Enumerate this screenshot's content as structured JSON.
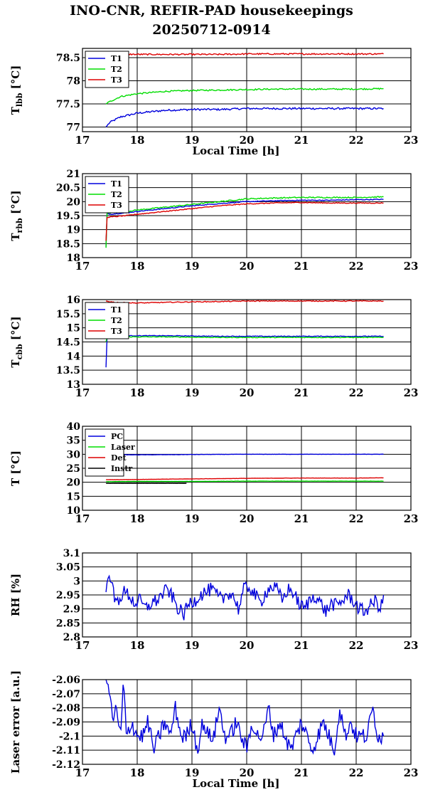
{
  "figure": {
    "title_line1": "INO-CNR, REFIR-PAD housekeepings",
    "title_line2": "20250712-0914"
  },
  "chart_data": [
    {
      "type": "line",
      "ylabel": "T",
      "ylabel_sub": "lbb",
      "ylabel_unit": "[°C]",
      "xlabel": "Local Time [h]",
      "xlim": [
        17,
        23
      ],
      "ylim": [
        76.9,
        78.7
      ],
      "xticks": [
        17,
        18,
        19,
        20,
        21,
        22,
        23
      ],
      "yticks": [
        77,
        77.5,
        78,
        78.5
      ],
      "ytick_labels": [
        "77",
        "77.5",
        "78",
        "78.5"
      ],
      "grid": true,
      "legend": "top-left",
      "series": [
        {
          "name": "T1",
          "color": "#0000dd",
          "x": [
            17.43,
            17.5,
            17.7,
            18.0,
            18.5,
            19.0,
            19.5,
            20.0,
            20.5,
            21.0,
            21.5,
            22.0,
            22.5
          ],
          "values": [
            77.0,
            77.1,
            77.22,
            77.3,
            77.36,
            77.38,
            77.38,
            77.4,
            77.4,
            77.4,
            77.4,
            77.4,
            77.4
          ],
          "noise": 0.02
        },
        {
          "name": "T2",
          "color": "#00dd00",
          "x": [
            17.43,
            17.5,
            17.7,
            18.0,
            18.5,
            19.0,
            19.5,
            20.0,
            20.5,
            21.0,
            21.5,
            22.0,
            22.5
          ],
          "values": [
            77.5,
            77.55,
            77.66,
            77.72,
            77.77,
            77.79,
            77.8,
            77.81,
            77.82,
            77.82,
            77.82,
            77.82,
            77.83
          ],
          "noise": 0.015
        },
        {
          "name": "T3",
          "color": "#dd0000",
          "x": [
            17.43,
            17.6,
            18.0,
            18.5,
            19.0,
            19.5,
            20.0,
            20.5,
            21.0,
            21.5,
            22.0,
            22.5
          ],
          "values": [
            78.6,
            78.58,
            78.57,
            78.57,
            78.57,
            78.57,
            78.58,
            78.58,
            78.58,
            78.58,
            78.58,
            78.58
          ],
          "noise": 0.015
        }
      ]
    },
    {
      "type": "line",
      "ylabel": "T",
      "ylabel_sub": "rbb",
      "ylabel_unit": "[°C]",
      "xlabel": "",
      "xlim": [
        17,
        23
      ],
      "ylim": [
        18,
        21
      ],
      "xticks": [
        17,
        18,
        19,
        20,
        21,
        22,
        23
      ],
      "yticks": [
        18,
        18.5,
        19,
        19.5,
        20,
        20.5,
        21
      ],
      "ytick_labels": [
        "18",
        "18.5",
        "19",
        "19.5",
        "20",
        "20.5",
        "21"
      ],
      "grid": true,
      "legend": "top-left",
      "series": [
        {
          "name": "T1",
          "color": "#0000dd",
          "x": [
            17.43,
            17.45,
            17.5,
            17.8,
            18.0,
            18.5,
            19.0,
            19.5,
            20.0,
            20.5,
            21.0,
            21.5,
            22.0,
            22.5
          ],
          "values": [
            18.4,
            19.6,
            19.55,
            19.6,
            19.65,
            19.75,
            19.85,
            19.93,
            20.0,
            20.03,
            20.05,
            20.05,
            20.07,
            20.08
          ],
          "noise": 0.015
        },
        {
          "name": "T2",
          "color": "#00dd00",
          "x": [
            17.43,
            17.45,
            17.5,
            17.8,
            18.0,
            18.5,
            19.0,
            19.5,
            20.0,
            20.5,
            21.0,
            21.5,
            22.0,
            22.5
          ],
          "values": [
            18.35,
            19.6,
            19.6,
            19.65,
            19.7,
            19.8,
            19.9,
            20.0,
            20.1,
            20.13,
            20.15,
            20.15,
            20.15,
            20.17
          ],
          "noise": 0.02
        },
        {
          "name": "T3",
          "color": "#dd0000",
          "x": [
            17.43,
            17.45,
            17.5,
            17.8,
            18.0,
            18.5,
            19.0,
            19.5,
            20.0,
            20.5,
            21.0,
            21.5,
            22.0,
            22.5
          ],
          "values": [
            18.6,
            19.45,
            19.45,
            19.5,
            19.55,
            19.65,
            19.75,
            19.85,
            19.92,
            19.95,
            19.97,
            19.95,
            19.95,
            19.95
          ],
          "noise": 0.015
        }
      ]
    },
    {
      "type": "line",
      "ylabel": "T",
      "ylabel_sub": "cbb",
      "ylabel_unit": "[°C]",
      "xlabel": "",
      "xlim": [
        17,
        23
      ],
      "ylim": [
        13,
        16
      ],
      "xticks": [
        17,
        18,
        19,
        20,
        21,
        22,
        23
      ],
      "yticks": [
        13,
        13.5,
        14,
        14.5,
        15,
        15.5,
        16
      ],
      "ytick_labels": [
        "13",
        "13.5",
        "14",
        "14.5",
        "15",
        "15.5",
        "16"
      ],
      "grid": true,
      "legend": "top-left",
      "series": [
        {
          "name": "T1",
          "color": "#0000dd",
          "x": [
            17.43,
            17.45,
            17.5,
            18.0,
            18.5,
            19.0,
            19.5,
            20.0,
            20.5,
            21.0,
            21.5,
            22.0,
            22.5
          ],
          "values": [
            13.6,
            14.7,
            14.72,
            14.72,
            14.72,
            14.71,
            14.7,
            14.7,
            14.7,
            14.7,
            14.7,
            14.7,
            14.7
          ],
          "noise": 0.012
        },
        {
          "name": "T2",
          "color": "#00dd00",
          "x": [
            17.43,
            17.45,
            17.5,
            18.0,
            18.5,
            19.0,
            19.5,
            20.0,
            20.5,
            21.0,
            21.5,
            22.0,
            22.5
          ],
          "values": [
            14.5,
            14.68,
            14.68,
            14.68,
            14.68,
            14.67,
            14.66,
            14.66,
            14.66,
            14.66,
            14.66,
            14.66,
            14.66
          ],
          "noise": 0.012
        },
        {
          "name": "T3",
          "color": "#dd0000",
          "x": [
            17.43,
            17.6,
            18.0,
            18.5,
            19.0,
            19.5,
            20.0,
            20.5,
            21.0,
            21.5,
            22.0,
            22.5
          ],
          "values": [
            15.95,
            15.9,
            15.88,
            15.9,
            15.92,
            15.93,
            15.95,
            15.95,
            15.95,
            15.95,
            15.95,
            15.95
          ],
          "noise": 0.015
        }
      ]
    },
    {
      "type": "line",
      "ylabel": "T [°C]",
      "ylabel_sub": "",
      "ylabel_unit": "",
      "xlabel": "",
      "xlim": [
        17,
        23
      ],
      "ylim": [
        10,
        40
      ],
      "xticks": [
        17,
        18,
        19,
        20,
        21,
        22,
        23
      ],
      "yticks": [
        10,
        15,
        20,
        25,
        30,
        35,
        40
      ],
      "ytick_labels": [
        "10",
        "15",
        "20",
        "25",
        "30",
        "35",
        "40"
      ],
      "grid": true,
      "legend": "top-left",
      "series": [
        {
          "name": "PC",
          "color": "#0000dd",
          "x": [
            17.43,
            18.0,
            19.0,
            20.0,
            21.0,
            22.0,
            22.5
          ],
          "values": [
            29.8,
            29.8,
            29.9,
            30.0,
            30.0,
            30.0,
            30.0
          ],
          "noise": 0.05
        },
        {
          "name": "Laser",
          "color": "#00dd00",
          "x": [
            17.43,
            18.0,
            19.0,
            20.0,
            21.0,
            22.0,
            22.5
          ],
          "values": [
            20.2,
            20.3,
            20.3,
            20.4,
            20.4,
            20.4,
            20.4
          ],
          "noise": 0.04
        },
        {
          "name": "Det",
          "color": "#dd0000",
          "x": [
            17.43,
            18.0,
            19.0,
            20.0,
            21.0,
            22.0,
            22.5
          ],
          "values": [
            20.9,
            21.0,
            21.2,
            21.4,
            21.5,
            21.5,
            21.6
          ],
          "noise": 0.04
        },
        {
          "name": "Instr",
          "color": "#000000",
          "x": [
            17.43,
            17.8,
            18.2,
            18.6,
            18.9
          ],
          "values": [
            19.6,
            19.6,
            19.6,
            19.6,
            19.6
          ],
          "noise": 0.02
        }
      ]
    },
    {
      "type": "line",
      "ylabel": "RH [%]",
      "ylabel_sub": "",
      "ylabel_unit": "",
      "xlabel": "",
      "xlim": [
        17,
        23
      ],
      "ylim": [
        2.8,
        3.1
      ],
      "xticks": [
        17,
        18,
        19,
        20,
        21,
        22,
        23
      ],
      "yticks": [
        2.8,
        2.85,
        2.9,
        2.95,
        3.0,
        3.05,
        3.1
      ],
      "ytick_labels": [
        "2.8",
        "2.85",
        "2.9",
        "2.95",
        "3",
        "3.05",
        "3.1"
      ],
      "grid": true,
      "legend": "none",
      "series": [
        {
          "name": "",
          "color": "#0000dd",
          "x": [
            17.43,
            17.48,
            17.55,
            17.6,
            17.65,
            17.75,
            17.85,
            17.95,
            18.05,
            18.15,
            18.25,
            18.35,
            18.45,
            18.55,
            18.65,
            18.75,
            18.85,
            18.95,
            19.05,
            19.15,
            19.25,
            19.35,
            19.45,
            19.55,
            19.65,
            19.75,
            19.85,
            19.95,
            20.05,
            20.15,
            20.25,
            20.35,
            20.45,
            20.55,
            20.65,
            20.75,
            20.85,
            20.95,
            21.05,
            21.15,
            21.25,
            21.35,
            21.45,
            21.55,
            21.65,
            21.75,
            21.85,
            21.95,
            22.05,
            22.15,
            22.25,
            22.35,
            22.45,
            22.5
          ],
          "values": [
            2.96,
            3.05,
            2.97,
            2.92,
            2.93,
            2.96,
            2.95,
            2.92,
            2.93,
            2.9,
            2.92,
            2.93,
            2.95,
            2.97,
            2.94,
            2.9,
            2.88,
            2.92,
            2.93,
            2.95,
            2.96,
            2.97,
            2.95,
            2.93,
            2.96,
            2.95,
            2.9,
            2.97,
            2.98,
            2.95,
            2.92,
            2.96,
            2.98,
            2.97,
            2.93,
            2.97,
            2.96,
            2.92,
            2.9,
            2.93,
            2.95,
            2.92,
            2.89,
            2.92,
            2.91,
            2.93,
            2.95,
            2.93,
            2.9,
            2.89,
            2.91,
            2.93,
            2.9,
            2.95
          ],
          "noise": 0.025
        }
      ]
    },
    {
      "type": "line",
      "ylabel": "Laser error [a.u.]",
      "ylabel_sub": "",
      "ylabel_unit": "",
      "xlabel": "Local Time [h]",
      "xlim": [
        17,
        23
      ],
      "ylim": [
        -2.12,
        -2.06
      ],
      "xticks": [
        17,
        18,
        19,
        20,
        21,
        22,
        23
      ],
      "yticks": [
        -2.12,
        -2.11,
        -2.1,
        -2.09,
        -2.08,
        -2.07,
        -2.06
      ],
      "ytick_labels": [
        "-2.12",
        "-2.11",
        "-2.1",
        "-2.09",
        "-2.08",
        "-2.07",
        "-2.06"
      ],
      "grid": true,
      "legend": "none",
      "series": [
        {
          "name": "",
          "color": "#0000dd",
          "x": [
            17.43,
            17.5,
            17.55,
            17.6,
            17.7,
            17.75,
            17.8,
            17.9,
            18.0,
            18.1,
            18.2,
            18.3,
            18.4,
            18.5,
            18.6,
            18.7,
            18.8,
            18.9,
            19.0,
            19.1,
            19.2,
            19.3,
            19.4,
            19.5,
            19.6,
            19.7,
            19.8,
            19.9,
            20.0,
            20.1,
            20.2,
            20.3,
            20.4,
            20.5,
            20.6,
            20.7,
            20.8,
            20.9,
            21.0,
            21.1,
            21.2,
            21.3,
            21.4,
            21.5,
            21.6,
            21.7,
            21.8,
            21.9,
            22.0,
            22.1,
            22.2,
            22.3,
            22.4,
            22.5
          ],
          "values": [
            -2.06,
            -2.07,
            -2.09,
            -2.08,
            -2.1,
            -2.06,
            -2.1,
            -2.09,
            -2.1,
            -2.1,
            -2.09,
            -2.11,
            -2.1,
            -2.09,
            -2.1,
            -2.08,
            -2.1,
            -2.1,
            -2.09,
            -2.11,
            -2.09,
            -2.1,
            -2.1,
            -2.08,
            -2.1,
            -2.1,
            -2.09,
            -2.1,
            -2.11,
            -2.09,
            -2.1,
            -2.1,
            -2.08,
            -2.1,
            -2.09,
            -2.1,
            -2.11,
            -2.1,
            -2.09,
            -2.1,
            -2.11,
            -2.1,
            -2.09,
            -2.1,
            -2.11,
            -2.08,
            -2.1,
            -2.09,
            -2.1,
            -2.1,
            -2.1,
            -2.08,
            -2.1,
            -2.1
          ],
          "noise": 0.006
        }
      ]
    }
  ]
}
